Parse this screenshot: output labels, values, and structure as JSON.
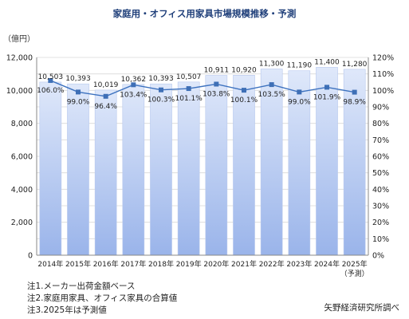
{
  "chart_data": {
    "type": "bar",
    "title": "家庭用・オフィス用家具市場規模推移・予測",
    "y_unit_label": "（億円）",
    "categories": [
      "2014年",
      "2015年",
      "2016年",
      "2017年",
      "2018年",
      "2019年",
      "2020年",
      "2021年",
      "2022年",
      "2023年",
      "2024年",
      "2025年"
    ],
    "category_suffix": {
      "11": "（予測）"
    },
    "series": [
      {
        "type": "bar",
        "axis": "left",
        "values": [
          10503,
          10393,
          10019,
          10362,
          10393,
          10507,
          10911,
          10920,
          11300,
          11190,
          11400,
          11280
        ],
        "labels": [
          "10,503",
          "10,393",
          "10,019",
          "10,362",
          "10,393",
          "10,507",
          "10,911",
          "10,920",
          "11,300",
          "11,190",
          "11,400",
          "11,280"
        ]
      },
      {
        "type": "line",
        "axis": "right",
        "values": [
          106.0,
          99.0,
          96.4,
          103.4,
          100.3,
          101.1,
          103.8,
          100.1,
          103.5,
          99.0,
          101.9,
          98.9
        ],
        "labels": [
          "106.0%",
          "99.0%",
          "96.4%",
          "103.4%",
          "100.3%",
          "101.1%",
          "103.8%",
          "100.1%",
          "103.5%",
          "99.0%",
          "101.9%",
          "98.9%"
        ]
      }
    ],
    "ylim": [
      0,
      12000
    ],
    "y_ticks": [
      "0",
      "2,000",
      "4,000",
      "6,000",
      "8,000",
      "10,000",
      "12,000"
    ],
    "y2lim": [
      0,
      120
    ],
    "y2_ticks": [
      "0%",
      "10%",
      "20%",
      "30%",
      "40%",
      "50%",
      "60%",
      "70%",
      "80%",
      "90%",
      "100%",
      "110%",
      "120%"
    ],
    "grid": true,
    "colors": {
      "bar_top": "#dfe8fa",
      "bar_bottom": "#9ab4ea",
      "bar_edge": "#b7c8ee",
      "line": "#3d72bf",
      "marker": "#3e6fb6",
      "axis": "#888888",
      "title": "#1f3f7a"
    }
  },
  "notes": [
    "注1.メーカー出荷金額ベース",
    "注2.家庭用家具、オフィス家具の合算値",
    "注3.2025年は予測値"
  ],
  "source": "矢野経済研究所調べ"
}
